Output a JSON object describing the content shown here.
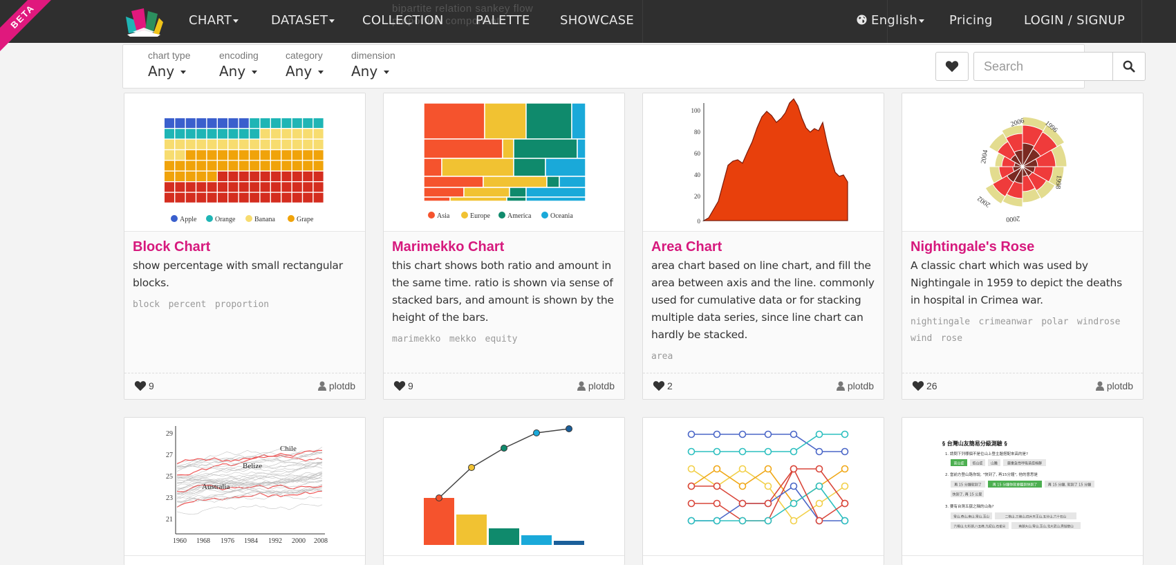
{
  "brand": {
    "beta": "BETA",
    "logo_icon": "plotdb-logo-icon"
  },
  "nav": {
    "left": [
      {
        "label": "CHART",
        "dropdown": true
      },
      {
        "label": "DATASET",
        "dropdown": true
      },
      {
        "label": "COLLECTION",
        "dropdown": false
      },
      {
        "label": "PALETTE",
        "dropdown": false
      },
      {
        "label": "SHOWCASE",
        "dropdown": false
      }
    ],
    "right": {
      "language": "English",
      "language_icon": "globe-icon",
      "pricing": "Pricing",
      "login": "LOGIN / SIGNUP"
    },
    "ghost_text_line1": "bipartite  relation  sankey  flow",
    "ghost_text_line2": "proportion  component"
  },
  "filters": [
    {
      "label": "chart type",
      "value": "Any"
    },
    {
      "label": "encoding",
      "value": "Any"
    },
    {
      "label": "category",
      "value": "Any"
    },
    {
      "label": "dimension",
      "value": "Any"
    }
  ],
  "search": {
    "placeholder": "Search",
    "favorite_icon": "heart-icon",
    "search_icon": "search-icon"
  },
  "cards": [
    {
      "title": "Block Chart",
      "desc": "show percentage with small rectangular blocks.",
      "tags": [
        "block",
        "percent",
        "proportion"
      ],
      "likes": "9",
      "author": "plotdb",
      "legend": [
        "Apple",
        "Orange",
        "Banana",
        "Grape"
      ]
    },
    {
      "title": "Marimekko Chart",
      "desc": "this chart shows both ratio and amount in the same time. ratio is shown via sense of stacked bars, and amount is shown by the height of the bars.",
      "tags": [
        "marimekko",
        "mekko",
        "equity"
      ],
      "likes": "9",
      "author": "plotdb",
      "legend": [
        "Asia",
        "Europe",
        "America",
        "Oceania"
      ]
    },
    {
      "title": "Area Chart",
      "desc": "area chart based on line chart, and fill the area between axis and the line. commonly used for cumulative data or for stacking multiple data series, since line chart can hardly be stacked.",
      "tags": [
        "area"
      ],
      "likes": "2",
      "author": "plotdb",
      "y_ticks": [
        "100",
        "80",
        "60",
        "40",
        "20",
        "0"
      ]
    },
    {
      "title": "Nightingale's Rose",
      "desc": "A classic chart which was used by Nightingale in 1959 to depict the deaths in hospital in Crimea war.",
      "tags": [
        "nightingale",
        "crimeanwar",
        "polar",
        "windrose",
        "wind",
        "rose"
      ],
      "likes": "26",
      "author": "plotdb",
      "labels": [
        "2006",
        "1996",
        "2004",
        "1998",
        "2002",
        "2000"
      ]
    }
  ],
  "row2": {
    "line_bands": {
      "y_ticks": [
        "29",
        "27",
        "25",
        "23",
        "21"
      ],
      "x_ticks": [
        "1960",
        "1968",
        "1976",
        "1984",
        "1992",
        "2000",
        "2008"
      ],
      "labels": [
        "Chile",
        "Belize",
        "Australia"
      ]
    },
    "quiz": {
      "title": "§ 台灣山友簡易分級測驗 §",
      "q1": "1. 請問下列哪個不是位山上登主題搭配來高的是?",
      "q1_opts": [
        "高山症",
        "低山症",
        "山難",
        "嚴重急性呼吸道症候群"
      ],
      "q2": "2. 當前方登山路你說, \"快到了, 再15分鐘\", 他的意思是",
      "q2_opts": [
        "再 15 分鐘就到了",
        "再 15 分鐘你就會聽到快到了",
        "再 15 分鐘, 就到了 15 分鐘",
        "快到了, 再 15 公里"
      ],
      "q3": "3. 要有台灣五嶽之稱的山為?",
      "q3_opts": [
        "雪山,奇山,南山,雪山,玉山",
        "二格山,三峽山,四大天王山,五分山,六十石山",
        "六楊山,七彩湖,八五峰,九紀山,石雀尖",
        "南湖大山,雪山,玉山,北大武山,秀姑巒山"
      ]
    }
  },
  "colors": {
    "accent": "#d6197d",
    "nav_bg": "#2f2f2f",
    "apple": "#3a5fcd",
    "orange": "#1fb5b5",
    "banana": "#f7dc6f",
    "grape": "#f0a30a",
    "red": "#d42d1f",
    "area": "#e8400c"
  }
}
